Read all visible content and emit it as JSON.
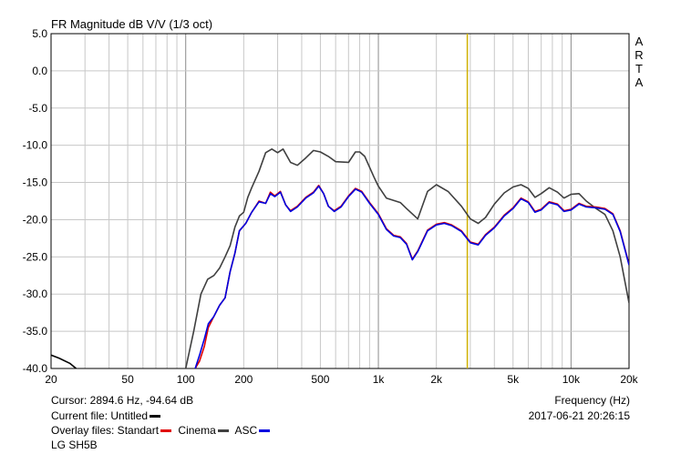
{
  "chart_data": {
    "type": "line",
    "title": "FR Magnitude dB V/V (1/3 oct)",
    "brand": "ARTA",
    "xlabel": "Frequency (Hz)",
    "xscale": "log",
    "xlim": [
      20,
      20000
    ],
    "ylim": [
      -40,
      5
    ],
    "grid": true,
    "cursor_freq": 2894.6,
    "x_ticks": [
      {
        "v": 20,
        "label": "20"
      },
      {
        "v": 50,
        "label": "50"
      },
      {
        "v": 100,
        "label": "100"
      },
      {
        "v": 200,
        "label": "200"
      },
      {
        "v": 500,
        "label": "500"
      },
      {
        "v": 1000,
        "label": "1k"
      },
      {
        "v": 2000,
        "label": "2k"
      },
      {
        "v": 5000,
        "label": "5k"
      },
      {
        "v": 10000,
        "label": "10k"
      },
      {
        "v": 20000,
        "label": "20k"
      }
    ],
    "y_ticks": [
      {
        "v": 5,
        "label": "5.0"
      },
      {
        "v": 0,
        "label": "0.0"
      },
      {
        "v": -5,
        "label": "-5.0"
      },
      {
        "v": -10,
        "label": "-10.0"
      },
      {
        "v": -15,
        "label": "-15.0"
      },
      {
        "v": -20,
        "label": "-20.0"
      },
      {
        "v": -25,
        "label": "-25.0"
      },
      {
        "v": -30,
        "label": "-30.0"
      },
      {
        "v": -35,
        "label": "-35.0"
      },
      {
        "v": -40,
        "label": "-40.0"
      }
    ],
    "series": [
      {
        "name": "Current file",
        "color": "#000000",
        "points": [
          [
            20,
            -38.2
          ],
          [
            22,
            -38.6
          ],
          [
            25,
            -39.3
          ],
          [
            27,
            -40.0
          ]
        ]
      },
      {
        "name": "Standart",
        "color": "#e00000",
        "points": [
          [
            112,
            -40
          ],
          [
            118,
            -39
          ],
          [
            125,
            -37
          ],
          [
            131,
            -34.5
          ],
          [
            140,
            -33
          ],
          [
            150,
            -31.5
          ],
          [
            160,
            -30.5
          ],
          [
            170,
            -27
          ],
          [
            180,
            -24.5
          ],
          [
            190,
            -21.5
          ],
          [
            205,
            -20.5
          ],
          [
            220,
            -19
          ],
          [
            240,
            -17.5
          ],
          [
            260,
            -17.8
          ],
          [
            275,
            -16.3
          ],
          [
            290,
            -16.8
          ],
          [
            310,
            -16.2
          ],
          [
            330,
            -18
          ],
          [
            350,
            -18.8
          ],
          [
            380,
            -18.2
          ],
          [
            420,
            -17
          ],
          [
            460,
            -16.3
          ],
          [
            490,
            -15.4
          ],
          [
            520,
            -16.5
          ],
          [
            550,
            -18.2
          ],
          [
            590,
            -18.8
          ],
          [
            640,
            -18.2
          ],
          [
            700,
            -16.8
          ],
          [
            760,
            -15.8
          ],
          [
            820,
            -16.2
          ],
          [
            900,
            -17.7
          ],
          [
            1000,
            -19.2
          ],
          [
            1100,
            -21.2
          ],
          [
            1200,
            -22.1
          ],
          [
            1300,
            -22.3
          ],
          [
            1400,
            -23.2
          ],
          [
            1500,
            -25.3
          ],
          [
            1600,
            -24.2
          ],
          [
            1800,
            -21.4
          ],
          [
            2000,
            -20.6
          ],
          [
            2200,
            -20.4
          ],
          [
            2400,
            -20.7
          ],
          [
            2700,
            -21.5
          ],
          [
            3000,
            -23
          ],
          [
            3300,
            -23.3
          ],
          [
            3600,
            -22
          ],
          [
            4000,
            -21
          ],
          [
            4500,
            -19.4
          ],
          [
            5000,
            -18.4
          ],
          [
            5500,
            -17.1
          ],
          [
            6000,
            -17.6
          ],
          [
            6500,
            -18.9
          ],
          [
            7000,
            -18.6
          ],
          [
            7700,
            -17.6
          ],
          [
            8500,
            -17.9
          ],
          [
            9200,
            -18.8
          ],
          [
            10000,
            -18.6
          ],
          [
            11000,
            -17.8
          ],
          [
            12000,
            -18.2
          ],
          [
            13500,
            -18.3
          ],
          [
            15000,
            -18.5
          ],
          [
            16500,
            -19.2
          ],
          [
            18000,
            -21.5
          ],
          [
            20000,
            -26
          ]
        ]
      },
      {
        "name": "Cinema",
        "color": "#404040",
        "points": [
          [
            100,
            -40
          ],
          [
            110,
            -35
          ],
          [
            120,
            -30
          ],
          [
            130,
            -28
          ],
          [
            140,
            -27.5
          ],
          [
            150,
            -26.5
          ],
          [
            160,
            -25
          ],
          [
            170,
            -23.5
          ],
          [
            180,
            -21
          ],
          [
            190,
            -19.5
          ],
          [
            200,
            -19
          ],
          [
            210,
            -17
          ],
          [
            220,
            -15.7
          ],
          [
            240,
            -13.5
          ],
          [
            260,
            -11
          ],
          [
            280,
            -10.5
          ],
          [
            300,
            -11
          ],
          [
            320,
            -10.5
          ],
          [
            350,
            -12.3
          ],
          [
            380,
            -12.7
          ],
          [
            420,
            -11.7
          ],
          [
            460,
            -10.7
          ],
          [
            500,
            -10.9
          ],
          [
            550,
            -11.5
          ],
          [
            600,
            -12.2
          ],
          [
            700,
            -12.3
          ],
          [
            760,
            -10.9
          ],
          [
            800,
            -10.9
          ],
          [
            850,
            -11.5
          ],
          [
            950,
            -14.3
          ],
          [
            1000,
            -15.5
          ],
          [
            1100,
            -17.1
          ],
          [
            1300,
            -17.7
          ],
          [
            1400,
            -18.5
          ],
          [
            1600,
            -19.9
          ],
          [
            1800,
            -16.2
          ],
          [
            2000,
            -15.3
          ],
          [
            2300,
            -16.2
          ],
          [
            2700,
            -18.2
          ],
          [
            3000,
            -19.9
          ],
          [
            3300,
            -20.5
          ],
          [
            3600,
            -19.7
          ],
          [
            4000,
            -17.9
          ],
          [
            4500,
            -16.4
          ],
          [
            5000,
            -15.6
          ],
          [
            5500,
            -15.3
          ],
          [
            6000,
            -15.8
          ],
          [
            6500,
            -17
          ],
          [
            7000,
            -16.5
          ],
          [
            7700,
            -15.7
          ],
          [
            8500,
            -16.3
          ],
          [
            9200,
            -17.1
          ],
          [
            10000,
            -16.6
          ],
          [
            11000,
            -16.5
          ],
          [
            12000,
            -17.5
          ],
          [
            13500,
            -18.5
          ],
          [
            15000,
            -19.3
          ],
          [
            16500,
            -21.5
          ],
          [
            18000,
            -25
          ],
          [
            20000,
            -31.2
          ]
        ]
      },
      {
        "name": "ASC",
        "color": "#0000e0",
        "points": [
          [
            112,
            -40
          ],
          [
            118,
            -38.2
          ],
          [
            125,
            -36
          ],
          [
            131,
            -34
          ],
          [
            140,
            -33
          ],
          [
            150,
            -31.5
          ],
          [
            160,
            -30.5
          ],
          [
            170,
            -27
          ],
          [
            180,
            -24.5
          ],
          [
            190,
            -21.5
          ],
          [
            205,
            -20.5
          ],
          [
            220,
            -19
          ],
          [
            240,
            -17.6
          ],
          [
            260,
            -17.8
          ],
          [
            275,
            -16.5
          ],
          [
            290,
            -16.9
          ],
          [
            310,
            -16.3
          ],
          [
            330,
            -18
          ],
          [
            350,
            -18.9
          ],
          [
            380,
            -18.3
          ],
          [
            420,
            -17.1
          ],
          [
            460,
            -16.4
          ],
          [
            490,
            -15.5
          ],
          [
            520,
            -16.5
          ],
          [
            550,
            -18.2
          ],
          [
            590,
            -18.9
          ],
          [
            640,
            -18.3
          ],
          [
            700,
            -16.9
          ],
          [
            760,
            -15.9
          ],
          [
            820,
            -16.3
          ],
          [
            900,
            -17.8
          ],
          [
            1000,
            -19.3
          ],
          [
            1100,
            -21.3
          ],
          [
            1200,
            -22.2
          ],
          [
            1300,
            -22.4
          ],
          [
            1400,
            -23.3
          ],
          [
            1500,
            -25.4
          ],
          [
            1600,
            -24.3
          ],
          [
            1800,
            -21.5
          ],
          [
            2000,
            -20.7
          ],
          [
            2200,
            -20.5
          ],
          [
            2400,
            -20.8
          ],
          [
            2700,
            -21.6
          ],
          [
            3000,
            -23.1
          ],
          [
            3300,
            -23.4
          ],
          [
            3600,
            -22.1
          ],
          [
            4000,
            -21.1
          ],
          [
            4500,
            -19.5
          ],
          [
            5000,
            -18.5
          ],
          [
            5500,
            -17.2
          ],
          [
            6000,
            -17.7
          ],
          [
            6500,
            -19
          ],
          [
            7000,
            -18.7
          ],
          [
            7700,
            -17.7
          ],
          [
            8500,
            -18
          ],
          [
            9200,
            -18.9
          ],
          [
            10000,
            -18.7
          ],
          [
            11000,
            -17.9
          ],
          [
            12000,
            -18.3
          ],
          [
            13500,
            -18.4
          ],
          [
            15000,
            -18.6
          ],
          [
            16500,
            -19.3
          ],
          [
            18000,
            -21.6
          ],
          [
            20000,
            -26.1
          ]
        ]
      }
    ]
  },
  "info": {
    "cursor": "Cursor: 2894.6 Hz, -94.64 dB",
    "current_file": "Current file: Untitled",
    "overlay_prefix": "Overlay files: Standart",
    "overlay_1": "Cinema",
    "overlay_2": "ASC",
    "frequency_label": "Frequency (Hz)",
    "timestamp": "2017-06-21  20:26:15",
    "device": "LG SH5B"
  }
}
